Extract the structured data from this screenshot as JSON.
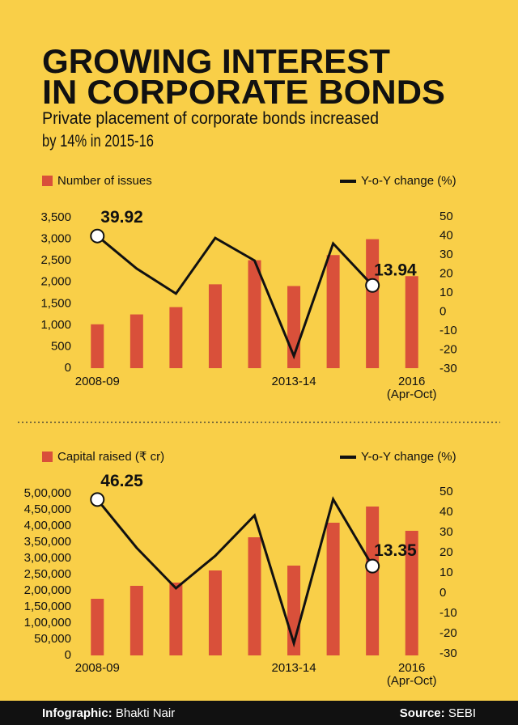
{
  "header": {
    "title_lines": [
      "GROWING INTEREST",
      "IN CORPORATE BONDS"
    ],
    "subtitle_lines": [
      "Private placement of corporate bonds increased",
      "by 14% in 2015-16"
    ]
  },
  "chart_data": [
    {
      "type": "bar",
      "categories": [
        "2008-09",
        null,
        null,
        null,
        null,
        "2013-14",
        null,
        null,
        "2016\n(Apr-Oct)"
      ],
      "series": [
        {
          "name": "Number of issues",
          "type": "bar",
          "color": "#d9503a",
          "values": [
            1020,
            1250,
            1420,
            1950,
            2510,
            1910,
            2630,
            3000,
            2140
          ]
        },
        {
          "name": "Y-o-Y change (%)",
          "type": "line",
          "axis": "y2",
          "color": "#111111",
          "values": [
            39.92,
            22.8,
            9.6,
            38.9,
            27,
            -23.2,
            36,
            13.94,
            null
          ],
          "value_labels": [
            "39.92",
            null,
            null,
            null,
            null,
            null,
            null,
            "13.94",
            null
          ]
        }
      ],
      "ylim": [
        0,
        3500
      ],
      "yticks": [
        0,
        500,
        {
          "value": 1000,
          "label": "1,000"
        },
        {
          "value": 1500,
          "label": "1,500"
        },
        {
          "value": 2000,
          "label": "2,000"
        },
        {
          "value": 2500,
          "label": "2,500"
        },
        {
          "value": 3000,
          "label": "3,000"
        },
        {
          "value": 3500,
          "label": "3,500"
        }
      ],
      "y2lim": [
        -30,
        50
      ],
      "y2ticks": [
        -30,
        -20,
        -10,
        0,
        10,
        20,
        30,
        40,
        50
      ],
      "grid": false
    },
    {
      "type": "bar",
      "categories": [
        "2008-09",
        null,
        null,
        null,
        null,
        "2013-14",
        null,
        null,
        "2016\n(Apr-Oct)"
      ],
      "series": [
        {
          "name": "Capital raised (₹ cr)",
          "type": "bar",
          "color": "#d9503a",
          "values": [
            175000,
            215000,
            225000,
            262500,
            365000,
            277500,
            410000,
            460000,
            385000
          ]
        },
        {
          "name": "Y-o-Y change (%)",
          "type": "line",
          "axis": "y2",
          "color": "#111111",
          "values": [
            46.25,
            22.4,
            2.4,
            18.4,
            38.4,
            -24.8,
            46.4,
            13.35,
            null
          ],
          "value_labels": [
            "46.25",
            null,
            null,
            null,
            null,
            null,
            null,
            "13.35",
            null
          ]
        }
      ],
      "ylim": [
        0,
        500000
      ],
      "yticks": [
        0,
        {
          "value": 50000,
          "label": "50,000"
        },
        {
          "value": 100000,
          "label": "1,00,000"
        },
        {
          "value": 150000,
          "label": "1,50,000"
        },
        {
          "value": 200000,
          "label": "2,00,000"
        },
        {
          "value": 250000,
          "label": "2,50,000"
        },
        {
          "value": 300000,
          "label": "3,00,000"
        },
        {
          "value": 350000,
          "label": "3,50,000"
        },
        {
          "value": 400000,
          "label": "4,00,000"
        },
        {
          "value": 450000,
          "label": "4,50,000"
        },
        {
          "value": 500000,
          "label": "5,00,000"
        }
      ],
      "y2lim": [
        -30,
        50
      ],
      "y2ticks": [
        -30,
        -20,
        -10,
        0,
        10,
        20,
        30,
        40,
        50
      ],
      "grid": false
    }
  ],
  "footer": {
    "credit_label": "Infographic:",
    "credit": "Bhakti Nair",
    "source_label": "Source:",
    "source": "SEBI"
  }
}
